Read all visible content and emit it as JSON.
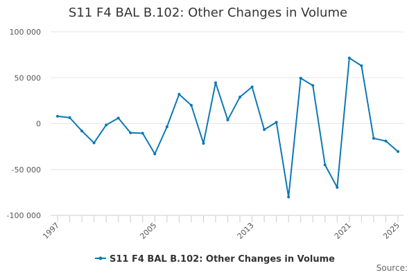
{
  "chart_data": {
    "type": "line",
    "title": "S11 F4 BAL B.102: Other Changes in Volume",
    "xlabel": "",
    "ylabel": "",
    "xlim": [
      1997,
      2025
    ],
    "ylim": [
      -100000,
      100000
    ],
    "y_ticks": [
      100000,
      50000,
      0,
      -50000,
      -100000
    ],
    "y_tick_labels": [
      "100 000",
      "50 000",
      "0",
      "-50 000",
      "-100 000"
    ],
    "x_tick_labels": [
      "1997",
      "2005",
      "2013",
      "2021",
      "2025"
    ],
    "x_tick_values": [
      1997,
      2005,
      2013,
      2021,
      2025
    ],
    "grid": true,
    "legend_position": "bottom",
    "series": [
      {
        "name": "S11 F4 BAL B.102: Other Changes in Volume",
        "color": "#0a78b4",
        "x": [
          1997,
          1998,
          1999,
          2000,
          2001,
          2002,
          2003,
          2004,
          2005,
          2006,
          2007,
          2008,
          2009,
          2010,
          2011,
          2012,
          2013,
          2014,
          2015,
          2016,
          2017,
          2018,
          2019,
          2020,
          2021,
          2022,
          2023,
          2024,
          2025
        ],
        "values": [
          8000,
          6500,
          -8000,
          -21000,
          -1500,
          6000,
          -10000,
          -10500,
          -33000,
          -3500,
          32000,
          20000,
          -21500,
          44500,
          4000,
          29000,
          40000,
          -6500,
          1500,
          -80000,
          49500,
          41500,
          -45000,
          -69500,
          71500,
          63000,
          -16000,
          -19000,
          -30500
        ]
      }
    ],
    "source_label": "Source:"
  }
}
